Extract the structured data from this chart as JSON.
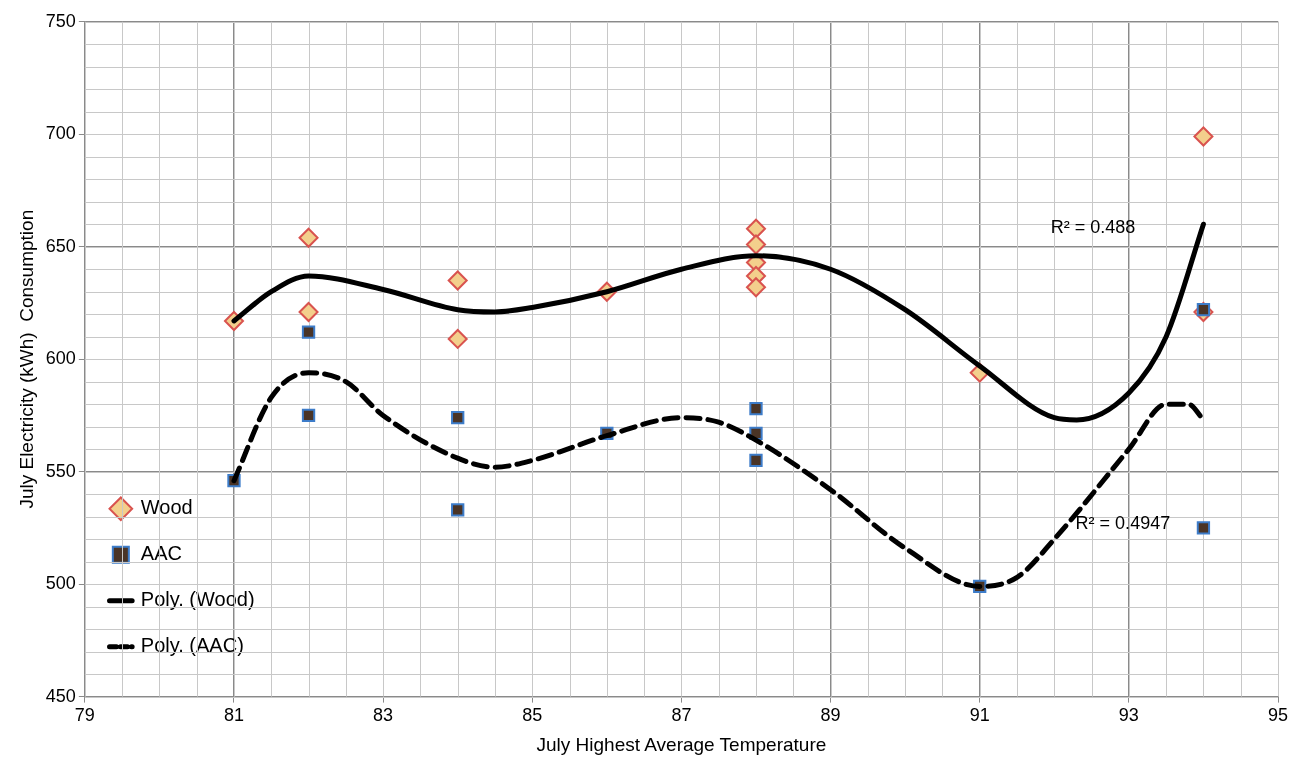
{
  "chart_data": {
    "type": "scatter",
    "xlabel": "July Highest Average Temperature",
    "ylabel": "July Electricity (kWh)  Consumption",
    "xlim": [
      79,
      95
    ],
    "xticks": [
      79,
      81,
      83,
      85,
      87,
      89,
      91,
      93,
      95
    ],
    "ylim": [
      450,
      750
    ],
    "yticks": [
      450,
      500,
      550,
      600,
      650,
      700,
      750
    ],
    "grid": true,
    "legend": "bottom left",
    "series": [
      {
        "name": "Wood",
        "marker": "diamond",
        "color": "#f3cf8c",
        "x": [
          81,
          82,
          82,
          84,
          84,
          86,
          88,
          88,
          88,
          88,
          88,
          91,
          94,
          94
        ],
        "values": [
          617,
          654,
          621,
          635,
          609,
          630,
          658,
          651,
          643,
          637,
          632,
          594,
          699,
          621
        ]
      },
      {
        "name": "AAC",
        "marker": "square",
        "color": "#4a3426",
        "x": [
          81,
          82,
          82,
          84,
          84,
          86,
          88,
          88,
          88,
          91,
          94,
          94
        ],
        "values": [
          546,
          612,
          575,
          574,
          533,
          567,
          578,
          567,
          555,
          499,
          622,
          525
        ]
      },
      {
        "name": "Poly. (Wood)",
        "type": "line",
        "color": "#000000",
        "line_style": "solid",
        "marker": "none",
        "x": [
          81,
          81.5,
          82,
          83,
          84,
          84.5,
          85,
          86,
          87,
          88,
          89,
          90,
          91,
          92,
          92.3,
          93,
          93.5,
          94
        ],
        "values": [
          617,
          630,
          637,
          631,
          622,
          621,
          623,
          630,
          640,
          646,
          640,
          622,
          597,
          574,
          573,
          585,
          610,
          660
        ]
      },
      {
        "name": "Poly. (AAC)",
        "type": "line",
        "color": "#000000",
        "line_style": "dashed",
        "marker": "none",
        "x": [
          81,
          81.5,
          82,
          82.5,
          83,
          84,
          84.5,
          85,
          86,
          87,
          87.5,
          88,
          89,
          90,
          91,
          91.5,
          92,
          93,
          93.5,
          93.8,
          94
        ],
        "values": [
          546,
          583,
          594,
          590,
          575,
          556,
          552,
          555,
          566,
          574,
          572,
          564,
          542,
          516,
          499,
          503,
          520,
          560,
          580,
          580,
          573
        ]
      }
    ],
    "annotations": [
      "R² = 0.488",
      "R² = 0.4947"
    ]
  }
}
